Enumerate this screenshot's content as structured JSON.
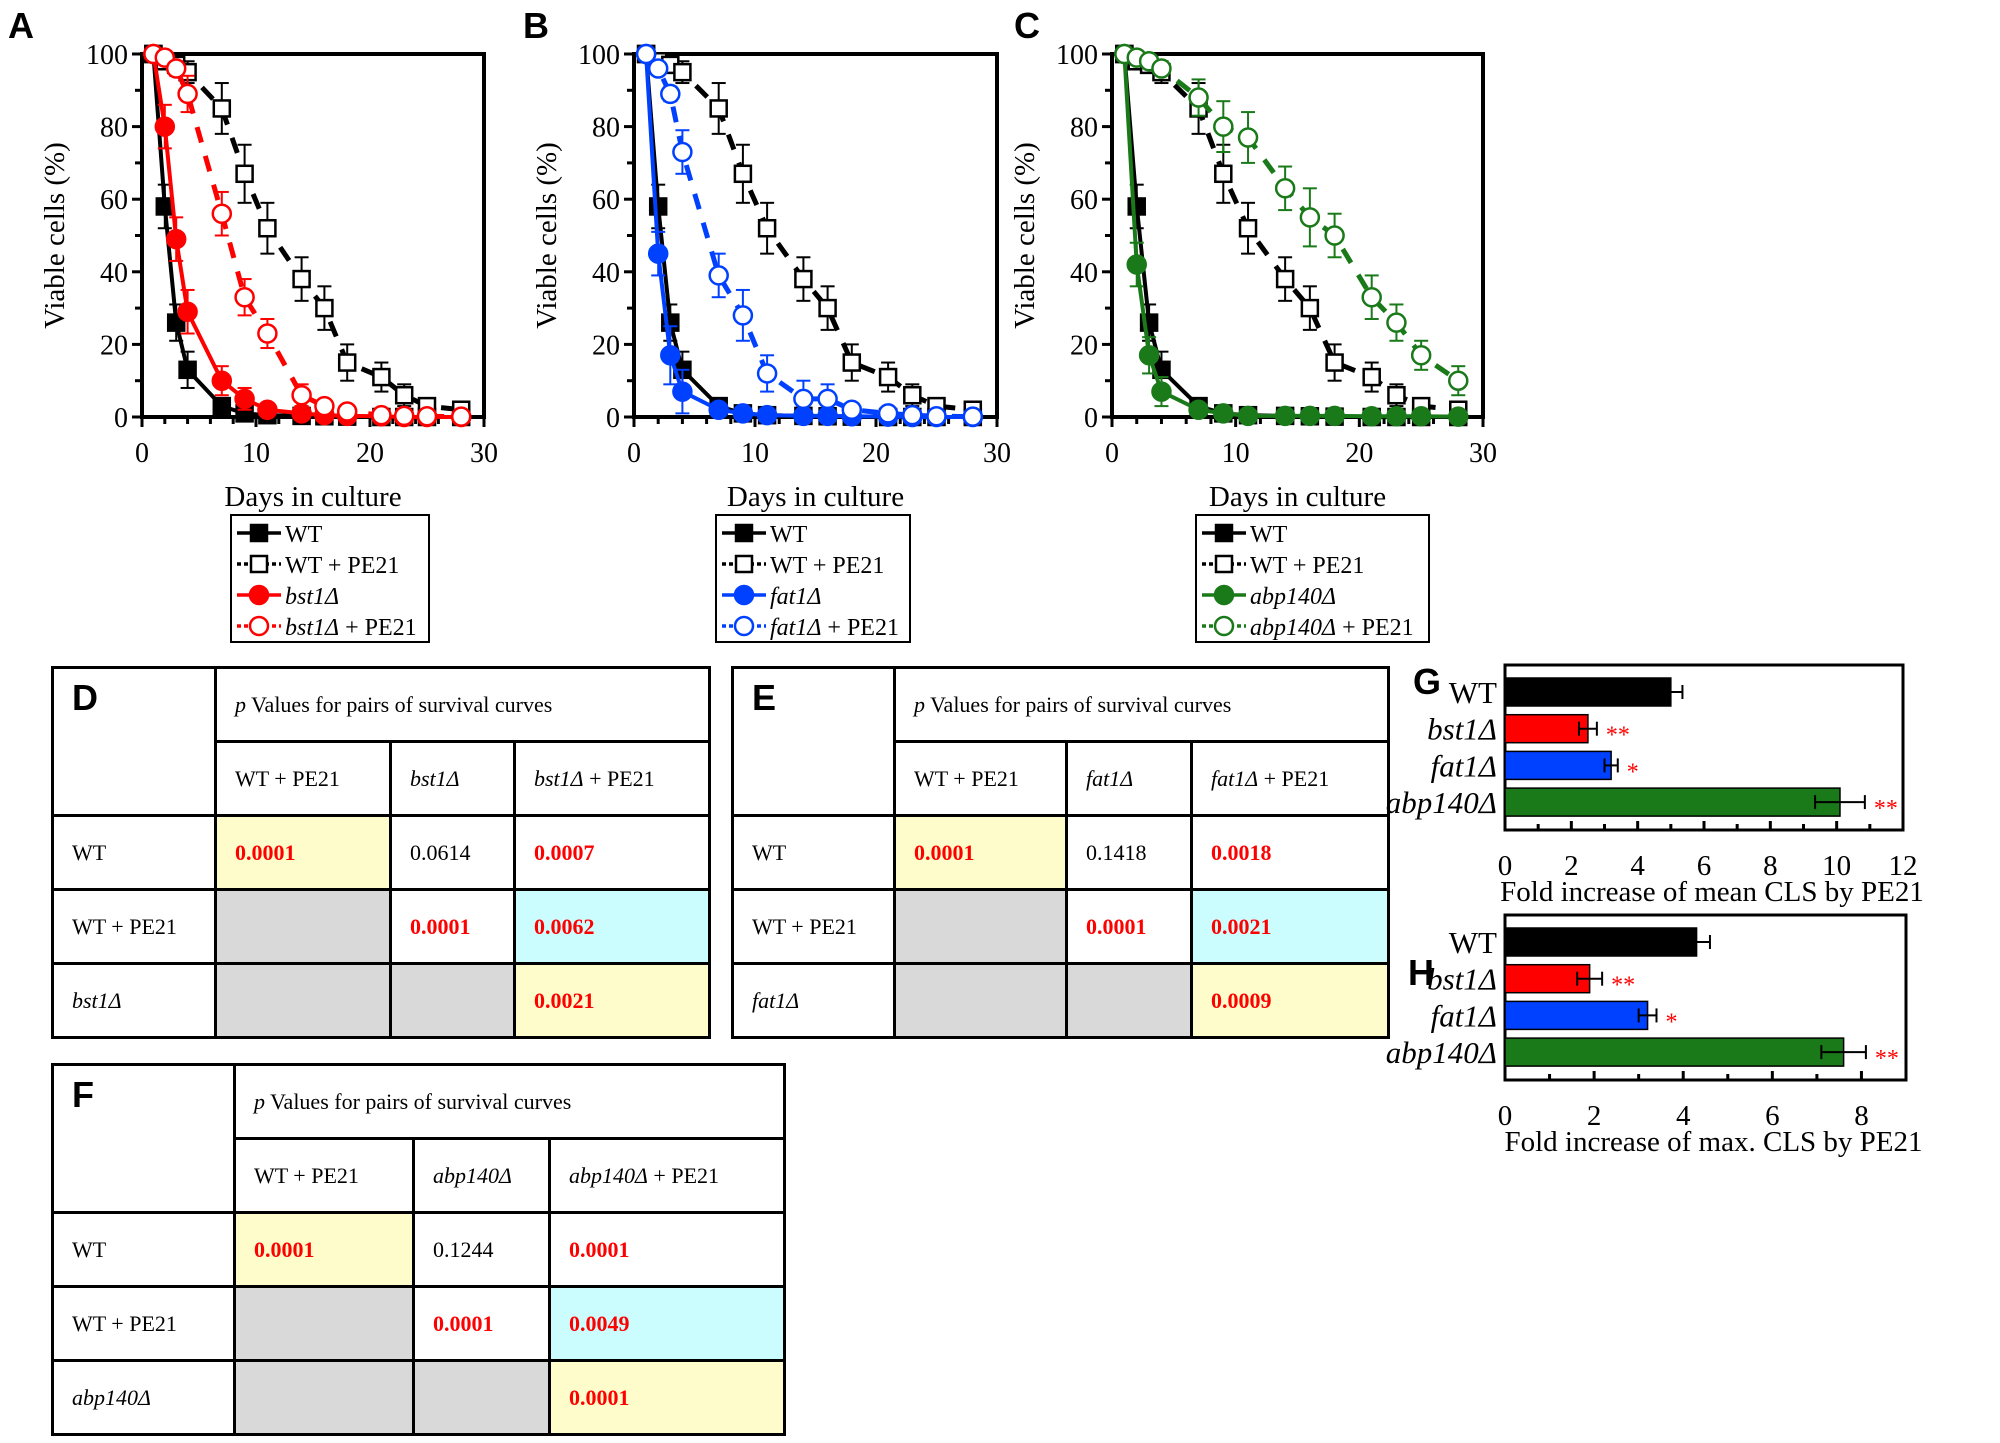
{
  "colors": {
    "wt": "#000000",
    "bst1": "#ff0000",
    "fat1": "#0040ff",
    "abp140": "#1a7a1a",
    "significance": "#ff0000",
    "yellow": "#fdfcca",
    "cyan": "#ccfdfe",
    "gray": "#d9d9d9"
  },
  "chart_data": [
    {
      "panel": "A",
      "type": "line",
      "xlabel": "Days in culture",
      "ylabel": "Viable cells (%)",
      "xlim": [
        0,
        30
      ],
      "ylim": [
        0,
        100
      ],
      "xticks": [
        "0",
        "10",
        "20",
        "30"
      ],
      "yticks": [
        "0",
        "20",
        "40",
        "60",
        "80",
        "100"
      ],
      "x": [
        1,
        2,
        3,
        4,
        7,
        9,
        11,
        14,
        16,
        18,
        21,
        23,
        25,
        28
      ],
      "series": [
        {
          "name": "WT",
          "color": "#000000",
          "marker": "square-filled",
          "dashed": false,
          "values": [
            100,
            58,
            26,
            13,
            3,
            1,
            0.5,
            0.3,
            0.2,
            0.1,
            0,
            0,
            0,
            0
          ],
          "errors": [
            0,
            6,
            5,
            5,
            1,
            0,
            0,
            0,
            0,
            0,
            0,
            0,
            0,
            0
          ]
        },
        {
          "name": "WT + PE21",
          "color": "#000000",
          "marker": "square-open",
          "dashed": true,
          "values": [
            100,
            98,
            97,
            95,
            85,
            67,
            52,
            38,
            30,
            15,
            11,
            6,
            3,
            2
          ],
          "errors": [
            1,
            1,
            2,
            3,
            7,
            8,
            7,
            6,
            6,
            5,
            4,
            3,
            0,
            0
          ]
        },
        {
          "name": "bst1Δ",
          "color": "#ff0000",
          "marker": "circle-filled",
          "dashed": false,
          "values": [
            100,
            80,
            49,
            29,
            10,
            5,
            2,
            1,
            0.5,
            0.3,
            0.2,
            0,
            0,
            0
          ],
          "errors": [
            0,
            6,
            6,
            6,
            4,
            3,
            1,
            0,
            0,
            0,
            0,
            0,
            0,
            0
          ]
        },
        {
          "name": "bst1Δ + PE21",
          "color": "#ff0000",
          "marker": "circle-open",
          "dashed": true,
          "values": [
            100,
            99,
            96,
            89,
            56,
            33,
            23,
            6,
            3,
            1.5,
            0.5,
            0.3,
            0.2,
            0.1
          ],
          "errors": [
            0,
            1,
            2,
            5,
            6,
            5,
            4,
            3,
            0,
            0,
            0,
            0,
            0,
            0
          ]
        }
      ],
      "legend": [
        {
          "italic": "",
          "plain": "WT"
        },
        {
          "italic": "",
          "plain": "WT + PE21"
        },
        {
          "italic": "bst1Δ",
          "plain": ""
        },
        {
          "italic": "bst1Δ",
          "plain": " + PE21"
        }
      ]
    },
    {
      "panel": "B",
      "type": "line",
      "xlabel": "Days in culture",
      "ylabel": "Viable cells (%)",
      "xlim": [
        0,
        30
      ],
      "ylim": [
        0,
        100
      ],
      "xticks": [
        "0",
        "10",
        "20",
        "30"
      ],
      "yticks": [
        "0",
        "20",
        "40",
        "60",
        "80",
        "100"
      ],
      "x": [
        1,
        2,
        3,
        4,
        7,
        9,
        11,
        14,
        16,
        18,
        21,
        23,
        25,
        28
      ],
      "series": [
        {
          "name": "WT",
          "color": "#000000",
          "marker": "square-filled",
          "dashed": false,
          "values": [
            100,
            58,
            26,
            13,
            3,
            1,
            0.5,
            0.3,
            0.2,
            0.1,
            0,
            0,
            0,
            0
          ],
          "errors": [
            0,
            6,
            5,
            5,
            1,
            0,
            0,
            0,
            0,
            0,
            0,
            0,
            0,
            0
          ]
        },
        {
          "name": "WT + PE21",
          "color": "#000000",
          "marker": "square-open",
          "dashed": true,
          "values": [
            100,
            98,
            97,
            95,
            85,
            67,
            52,
            38,
            30,
            15,
            11,
            6,
            3,
            2
          ],
          "errors": [
            1,
            1,
            2,
            3,
            7,
            8,
            7,
            6,
            6,
            5,
            4,
            3,
            0,
            0
          ]
        },
        {
          "name": "fat1Δ",
          "color": "#0040ff",
          "marker": "circle-filled",
          "dashed": false,
          "values": [
            100,
            45,
            17,
            7,
            2,
            1,
            0.5,
            0.3,
            0.3,
            0.2,
            0.1,
            0,
            0,
            0
          ],
          "errors": [
            0,
            6,
            8,
            6,
            1,
            0,
            0,
            0,
            0,
            0,
            0,
            0,
            0,
            0
          ]
        },
        {
          "name": "fat1Δ + PE21",
          "color": "#0040ff",
          "marker": "circle-open",
          "dashed": true,
          "values": [
            100,
            96,
            89,
            73,
            39,
            28,
            12,
            5,
            5,
            2,
            1,
            0.5,
            0.2,
            0.1
          ],
          "errors": [
            0,
            1,
            2,
            6,
            6,
            7,
            5,
            5,
            4,
            0,
            0,
            0,
            0,
            0
          ]
        }
      ],
      "legend": [
        {
          "italic": "",
          "plain": "WT"
        },
        {
          "italic": "",
          "plain": "WT + PE21"
        },
        {
          "italic": "fat1Δ",
          "plain": ""
        },
        {
          "italic": "fat1Δ",
          "plain": " + PE21"
        }
      ]
    },
    {
      "panel": "C",
      "type": "line",
      "xlabel": "Days in culture",
      "ylabel": "Viable cells (%)",
      "xlim": [
        0,
        30
      ],
      "ylim": [
        0,
        100
      ],
      "xticks": [
        "0",
        "10",
        "20",
        "30"
      ],
      "yticks": [
        "0",
        "20",
        "40",
        "60",
        "80",
        "100"
      ],
      "x": [
        1,
        2,
        3,
        4,
        7,
        9,
        11,
        14,
        16,
        18,
        21,
        23,
        25,
        28
      ],
      "series": [
        {
          "name": "WT",
          "color": "#000000",
          "marker": "square-filled",
          "dashed": false,
          "values": [
            100,
            58,
            26,
            13,
            3,
            1,
            0.5,
            0.3,
            0.2,
            0.1,
            0,
            0,
            0,
            0
          ],
          "errors": [
            0,
            6,
            5,
            5,
            1,
            0,
            0,
            0,
            0,
            0,
            0,
            0,
            0,
            0
          ]
        },
        {
          "name": "WT + PE21",
          "color": "#000000",
          "marker": "square-open",
          "dashed": true,
          "values": [
            100,
            98,
            97,
            95,
            85,
            67,
            52,
            38,
            30,
            15,
            11,
            6,
            3,
            2
          ],
          "errors": [
            1,
            1,
            2,
            3,
            7,
            8,
            7,
            6,
            6,
            5,
            4,
            3,
            0,
            0
          ]
        },
        {
          "name": "abp140Δ",
          "color": "#1a7a1a",
          "marker": "circle-filled",
          "dashed": false,
          "values": [
            100,
            42,
            17,
            7,
            2,
            1,
            0.3,
            0.3,
            0.3,
            0.3,
            0.2,
            0.2,
            0.2,
            0.1
          ],
          "errors": [
            0,
            6,
            5,
            4,
            1,
            0,
            0,
            0,
            0,
            0,
            0,
            0,
            0,
            0
          ]
        },
        {
          "name": "abp140Δ + PE21",
          "color": "#1a7a1a",
          "marker": "circle-open",
          "dashed": true,
          "values": [
            100,
            99,
            98,
            96,
            88,
            80,
            77,
            63,
            55,
            50,
            33,
            26,
            17,
            10
          ],
          "errors": [
            0,
            1,
            1,
            1,
            5,
            7,
            7,
            6,
            8,
            6,
            6,
            5,
            4,
            4
          ]
        }
      ],
      "legend": [
        {
          "italic": "",
          "plain": "WT"
        },
        {
          "italic": "",
          "plain": "WT + PE21"
        },
        {
          "italic": "abp140Δ",
          "plain": ""
        },
        {
          "italic": "abp140Δ",
          "plain": " + PE21"
        }
      ]
    },
    {
      "panel": "G",
      "type": "bar",
      "orientation": "horizontal",
      "xlabel": "Fold increase of mean CLS by PE21",
      "xlim": [
        0,
        12
      ],
      "xticks": [
        "0",
        "2",
        "4",
        "6",
        "8",
        "10",
        "12"
      ],
      "categories": [
        {
          "label": "WT",
          "italic": false
        },
        {
          "label": "bst1Δ",
          "italic": true
        },
        {
          "label": "fat1Δ",
          "italic": true
        },
        {
          "label": "abp140Δ",
          "italic": true
        }
      ],
      "values": [
        5.0,
        2.5,
        3.2,
        10.1
      ],
      "errors": [
        0.35,
        0.27,
        0.2,
        0.75
      ],
      "colors": [
        "#000000",
        "#ff0000",
        "#0040ff",
        "#1a7a1a"
      ],
      "significance": [
        "",
        "**",
        "*",
        "**"
      ]
    },
    {
      "panel": "H",
      "type": "bar",
      "orientation": "horizontal",
      "xlabel": "Fold increase of max. CLS by PE21",
      "xlim": [
        0,
        9
      ],
      "xticks": [
        "0",
        "2",
        "4",
        "6",
        "8"
      ],
      "categories": [
        {
          "label": "WT",
          "italic": false
        },
        {
          "label": "bst1Δ",
          "italic": true
        },
        {
          "label": "fat1Δ",
          "italic": true
        },
        {
          "label": "abp140Δ",
          "italic": true
        }
      ],
      "values": [
        4.3,
        1.9,
        3.2,
        7.6
      ],
      "errors": [
        0.3,
        0.28,
        0.2,
        0.5
      ],
      "colors": [
        "#000000",
        "#ff0000",
        "#0040ff",
        "#1a7a1a"
      ],
      "significance": [
        "",
        "**",
        "*",
        "**"
      ]
    }
  ],
  "tables": [
    {
      "panel": "D",
      "title_italic": "p",
      "title": " Values for pairs of survival curves",
      "columns": [
        {
          "italic": "",
          "plain": "WT + PE21"
        },
        {
          "italic": "bst1Δ",
          "plain": ""
        },
        {
          "italic": "bst1Δ",
          "plain": " + PE21"
        }
      ],
      "rows": [
        {
          "label": "WT",
          "label_italic": false,
          "cells": [
            {
              "value": "0.0001",
              "sig": true,
              "bg": "yellow"
            },
            {
              "value": "0.0614",
              "sig": false,
              "bg": ""
            },
            {
              "value": "0.0007",
              "sig": true,
              "bg": ""
            }
          ]
        },
        {
          "label": "WT + PE21",
          "label_italic": false,
          "cells": [
            {
              "value": "",
              "sig": false,
              "bg": "gray"
            },
            {
              "value": "0.0001",
              "sig": true,
              "bg": ""
            },
            {
              "value": "0.0062",
              "sig": true,
              "bg": "cyan"
            }
          ]
        },
        {
          "label": "bst1Δ",
          "label_italic": true,
          "cells": [
            {
              "value": "",
              "sig": false,
              "bg": "gray"
            },
            {
              "value": "",
              "sig": false,
              "bg": "gray"
            },
            {
              "value": "0.0021",
              "sig": true,
              "bg": "yellow"
            }
          ]
        }
      ]
    },
    {
      "panel": "E",
      "title_italic": "p",
      "title": " Values for pairs of survival curves",
      "columns": [
        {
          "italic": "",
          "plain": "WT + PE21"
        },
        {
          "italic": "fat1Δ",
          "plain": ""
        },
        {
          "italic": "fat1Δ",
          "plain": " + PE21"
        }
      ],
      "rows": [
        {
          "label": "WT",
          "label_italic": false,
          "cells": [
            {
              "value": "0.0001",
              "sig": true,
              "bg": "yellow"
            },
            {
              "value": "0.1418",
              "sig": false,
              "bg": ""
            },
            {
              "value": "0.0018",
              "sig": true,
              "bg": ""
            }
          ]
        },
        {
          "label": "WT + PE21",
          "label_italic": false,
          "cells": [
            {
              "value": "",
              "sig": false,
              "bg": "gray"
            },
            {
              "value": "0.0001",
              "sig": true,
              "bg": ""
            },
            {
              "value": "0.0021",
              "sig": true,
              "bg": "cyan"
            }
          ]
        },
        {
          "label": "fat1Δ",
          "label_italic": true,
          "cells": [
            {
              "value": "",
              "sig": false,
              "bg": "gray"
            },
            {
              "value": "",
              "sig": false,
              "bg": "gray"
            },
            {
              "value": "0.0009",
              "sig": true,
              "bg": "yellow"
            }
          ]
        }
      ]
    },
    {
      "panel": "F",
      "title_italic": "p",
      "title": " Values for pairs of survival curves",
      "columns": [
        {
          "italic": "",
          "plain": "WT + PE21"
        },
        {
          "italic": "abp140Δ",
          "plain": ""
        },
        {
          "italic": "abp140Δ",
          "plain": " + PE21"
        }
      ],
      "rows": [
        {
          "label": "WT",
          "label_italic": false,
          "cells": [
            {
              "value": "0.0001",
              "sig": true,
              "bg": "yellow"
            },
            {
              "value": "0.1244",
              "sig": false,
              "bg": ""
            },
            {
              "value": "0.0001",
              "sig": true,
              "bg": ""
            }
          ]
        },
        {
          "label": "WT + PE21",
          "label_italic": false,
          "cells": [
            {
              "value": "",
              "sig": false,
              "bg": "gray"
            },
            {
              "value": "0.0001",
              "sig": true,
              "bg": ""
            },
            {
              "value": "0.0049",
              "sig": true,
              "bg": "cyan"
            }
          ]
        },
        {
          "label": "abp140Δ",
          "label_italic": true,
          "cells": [
            {
              "value": "",
              "sig": false,
              "bg": "gray"
            },
            {
              "value": "",
              "sig": false,
              "bg": "gray"
            },
            {
              "value": "0.0001",
              "sig": true,
              "bg": "yellow"
            }
          ]
        }
      ]
    }
  ]
}
